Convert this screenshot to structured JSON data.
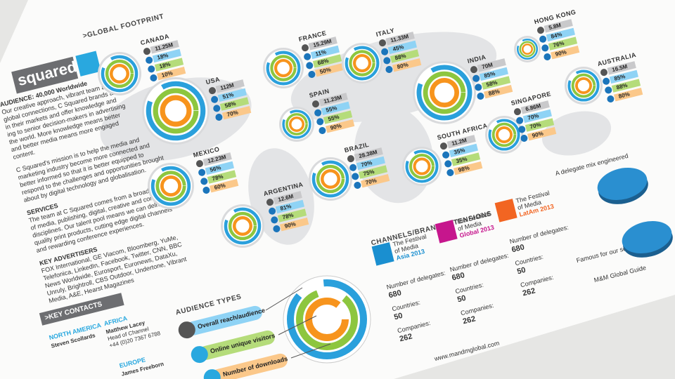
{
  "header": {
    "title": ">GLOBAL FOOTPRINT"
  },
  "brand": {
    "logo": "squared"
  },
  "about": {
    "lines": [
      "AUDIENCE: 40,000 Worldwide",
      "Our creative approach, vibrant team and",
      "global connections, C Squared brands are",
      "in their markets and offer knowledge and",
      "ing to senior decision-makers in advertising",
      "the world. More knowledge means better",
      "and better media means more engaged",
      "content.",
      "C Squared's mission is to help the media and",
      "marketing industry become more connected and",
      "better informed so that it is better equipped to",
      "respond to the challenges and opportunities brought",
      "about by digital technology and globalisation.",
      "SERVICES",
      "The team at C Squared comes from a broad spectrum",
      "of media, publishing, digital, creative and commercial",
      "disciplines. Our talent pool means we can deliver high-",
      "quality print products, cutting edge digital channels",
      "and rewarding conference experiences.",
      "KEY ADVERTISERS",
      "FOX International, GE Viacom, Bloomberg, YuMe,",
      "Telefonica, LinkedIn, Facebook, Twitter, CNN, BBC",
      "News Worldwide, Eurosport, Euronews, DataXu,",
      "Unruly, Brightroll, CBS Outdoor, Undertone, Vibrant",
      "Media, A&E, Hearst Magazines"
    ]
  },
  "regions": [
    {
      "name": "CANADA",
      "values": [
        "11.25M",
        "18%",
        "18%",
        "10%"
      ]
    },
    {
      "name": "USA",
      "values": [
        "112M",
        "51%",
        "58%",
        "70%"
      ]
    },
    {
      "name": "FRANCE",
      "values": [
        "15.29M",
        "11%",
        "68%",
        "50%"
      ]
    },
    {
      "name": "ITALY",
      "values": [
        "11.33M",
        "45%",
        "88%",
        "80%"
      ]
    },
    {
      "name": "SPAIN",
      "values": [
        "11.23M",
        "55%",
        "55%",
        "90%"
      ]
    },
    {
      "name": "MEXICO",
      "values": [
        "12.23M",
        "56%",
        "78%",
        "60%"
      ]
    },
    {
      "name": "BRAZIL",
      "values": [
        "28.38M",
        "70%",
        "75%",
        "70%"
      ]
    },
    {
      "name": "ARGENTINA",
      "values": [
        "12.6M",
        "81%",
        "78%",
        "90%"
      ]
    },
    {
      "name": "INDIA",
      "values": [
        "70M",
        "85%",
        "58%",
        "88%"
      ]
    },
    {
      "name": "SOUTH AFRICA",
      "values": [
        "11.2M",
        "35%",
        "35%",
        "98%"
      ]
    },
    {
      "name": "SINGAPORE",
      "values": [
        "6.86M",
        "70%",
        "70%",
        "90%"
      ]
    },
    {
      "name": "HONG KONG",
      "values": [
        "5.8M",
        "84%",
        "76%",
        "90%"
      ]
    },
    {
      "name": "AUSTRALIA",
      "values": [
        "16.5M",
        "85%",
        "88%",
        "80%"
      ]
    }
  ],
  "channels": {
    "title": "CHANNELS/BRAND EXTENSIONS",
    "festivals": [
      {
        "logo": [
          "The Festival",
          "of Media",
          "Asia 2013"
        ],
        "color": "#1a8fd0",
        "delegates_label": "Number of delegates:",
        "delegates": "680",
        "countries_label": "Countries:",
        "countries": "50",
        "companies_label": "Companies:",
        "companies": "262"
      },
      {
        "logo": [
          "The Festival",
          "of Media",
          "Global 2013"
        ],
        "color": "#c6168d",
        "delegates_label": "Number of delegates:",
        "delegates": "680",
        "countries_label": "Countries:",
        "countries": "50",
        "companies_label": "Companies:",
        "companies": "262"
      },
      {
        "logo": [
          "The Festival",
          "of Media",
          "LatAm 2013"
        ],
        "color": "#f26522",
        "delegates_label": "Number of delegates:",
        "delegates": "680",
        "countries_label": "Countries:",
        "countries": "50",
        "companies_label": "Companies:",
        "companies": "262"
      }
    ]
  },
  "audience": {
    "title": "AUDIENCE TYPES",
    "items": [
      "Overall reach/audience",
      "Online unique visitors",
      "Number of downloads"
    ]
  },
  "pies": {
    "titles": [
      "A delegate mix engineered",
      "Famous for our seniority"
    ]
  },
  "contacts": {
    "title": ">KEY CONTACTS",
    "groups": [
      {
        "region": "NORTH AMERICA",
        "lines": [
          "Steven Scollards"
        ]
      },
      {
        "region": "AFRICA",
        "lines": [
          "Matthew Lacey",
          "Head of Channel",
          "+44 (0)20 7367 6788"
        ]
      },
      {
        "region": "EUROPE",
        "lines": [
          "James Freeborn"
        ]
      }
    ]
  },
  "footer": {
    "guide": "M&M Global Guide",
    "url": "www.mandmglobal.com"
  }
}
